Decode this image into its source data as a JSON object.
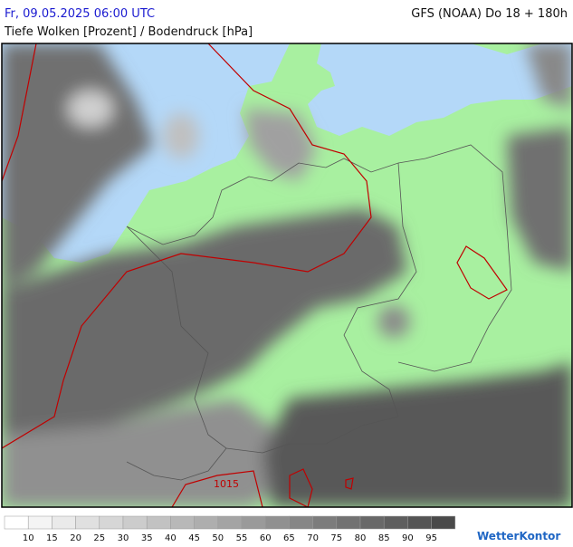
{
  "header": {
    "datetime": "Fr, 09.05.2025 06:00 UTC",
    "model": "GFS (NOAA) Do 18 + 180h",
    "subtitle": "Tiefe Wolken [Prozent] / Bodendruck [hPa]"
  },
  "map": {
    "isobar_label": "1015"
  },
  "legend": {
    "labels": [
      10,
      15,
      20,
      25,
      30,
      35,
      40,
      45,
      50,
      55,
      60,
      65,
      70,
      75,
      80,
      85,
      90,
      95
    ],
    "colors": [
      "#ffffff",
      "#f4f4f4",
      "#eaeaea",
      "#e0e0e0",
      "#d6d6d6",
      "#cccccc",
      "#c2c2c2",
      "#b8b8b8",
      "#aeaeae",
      "#a4a4a4",
      "#9a9a9a",
      "#909090",
      "#868686",
      "#7c7c7c",
      "#727272",
      "#686868",
      "#5e5e5e",
      "#545454",
      "#4a4a4a"
    ]
  },
  "logo": "WetterKontor"
}
